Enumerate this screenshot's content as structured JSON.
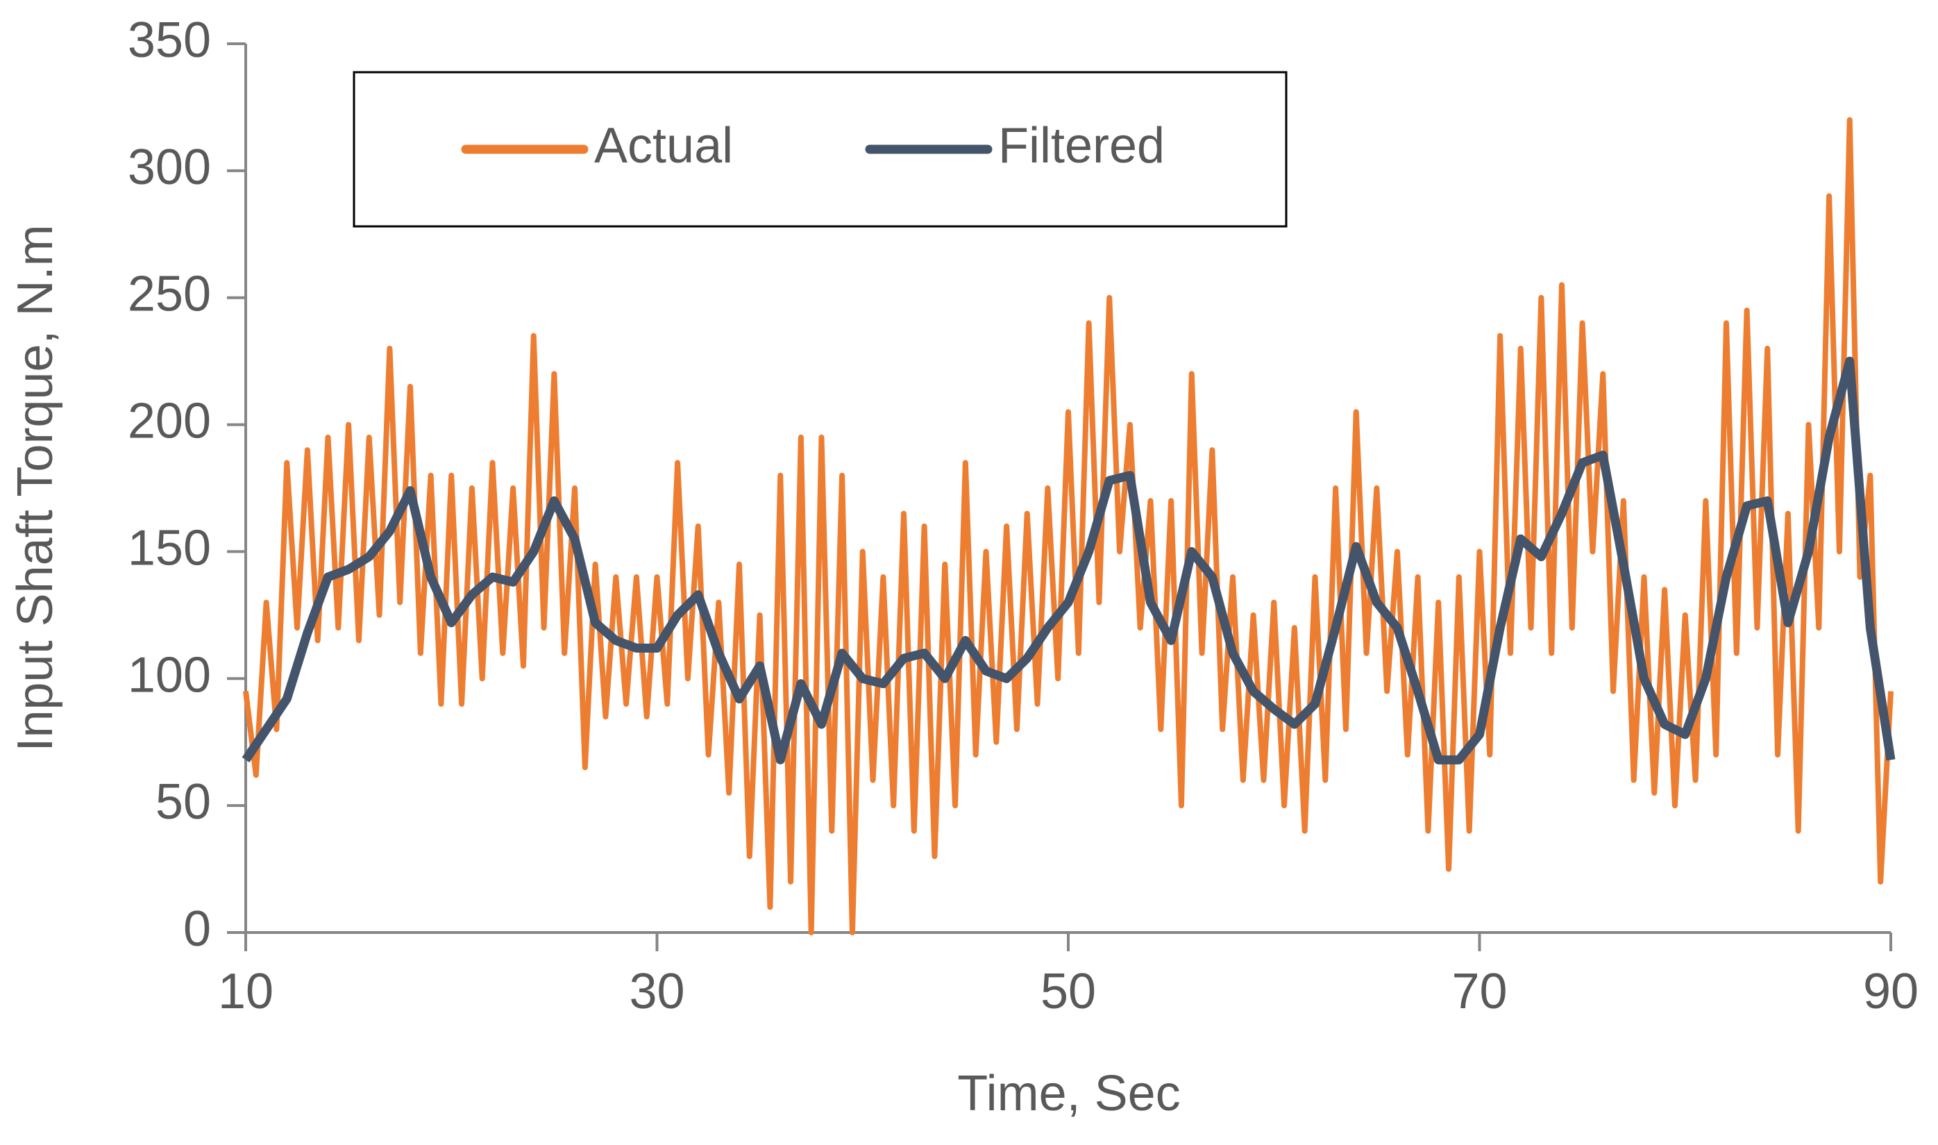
{
  "chart_data": {
    "type": "line",
    "x_label": "Time, Sec",
    "y_label": "Input Shaft Torque, N.m",
    "xlim": [
      10,
      90
    ],
    "xticks": [
      10,
      30,
      50,
      70,
      90
    ],
    "ylim": [
      0,
      350
    ],
    "yticks": [
      0,
      50,
      100,
      150,
      200,
      250,
      300,
      350
    ],
    "legend": "top-left",
    "series": [
      {
        "name": "Actual",
        "color": "#ED7D31",
        "x": [
          10,
          10.5,
          11,
          11.5,
          12,
          12.5,
          13,
          13.5,
          14,
          14.5,
          15,
          15.5,
          16,
          16.5,
          17,
          17.5,
          18,
          18.5,
          19,
          19.5,
          20,
          20.5,
          21,
          21.5,
          22,
          22.5,
          23,
          23.5,
          24,
          24.5,
          25,
          25.5,
          26,
          26.5,
          27,
          27.5,
          28,
          28.5,
          29,
          29.5,
          30,
          30.5,
          31,
          31.5,
          32,
          32.5,
          33,
          33.5,
          34,
          34.5,
          35,
          35.5,
          36,
          36.5,
          37,
          37.5,
          38,
          38.5,
          39,
          39.5,
          40,
          40.5,
          41,
          41.5,
          42,
          42.5,
          43,
          43.5,
          44,
          44.5,
          45,
          45.5,
          46,
          46.5,
          47,
          47.5,
          48,
          48.5,
          49,
          49.5,
          50,
          50.5,
          51,
          51.5,
          52,
          52.5,
          53,
          53.5,
          54,
          54.5,
          55,
          55.5,
          56,
          56.5,
          57,
          57.5,
          58,
          58.5,
          59,
          59.5,
          60,
          60.5,
          61,
          61.5,
          62,
          62.5,
          63,
          63.5,
          64,
          64.5,
          65,
          65.5,
          66,
          66.5,
          67,
          67.5,
          68,
          68.5,
          69,
          69.5,
          70,
          70.5,
          71,
          71.5,
          72,
          72.5,
          73,
          73.5,
          74,
          74.5,
          75,
          75.5,
          76,
          76.5,
          77,
          77.5,
          78,
          78.5,
          79,
          79.5,
          80,
          80.5,
          81,
          81.5,
          82,
          82.5,
          83,
          83.5,
          84,
          84.5,
          85,
          85.5,
          86,
          86.5,
          87,
          87.5,
          88,
          88.5,
          89,
          89.5,
          90
        ],
        "values": [
          95,
          62,
          130,
          80,
          185,
          120,
          190,
          115,
          195,
          120,
          200,
          115,
          195,
          125,
          230,
          130,
          215,
          110,
          180,
          90,
          180,
          90,
          175,
          100,
          185,
          110,
          175,
          105,
          235,
          120,
          220,
          110,
          175,
          65,
          145,
          85,
          140,
          90,
          140,
          85,
          140,
          90,
          185,
          100,
          160,
          70,
          130,
          55,
          145,
          30,
          125,
          10,
          180,
          20,
          195,
          0,
          195,
          40,
          180,
          0,
          150,
          60,
          140,
          50,
          165,
          40,
          160,
          30,
          145,
          50,
          185,
          70,
          150,
          75,
          160,
          80,
          165,
          90,
          175,
          100,
          205,
          110,
          240,
          130,
          250,
          150,
          200,
          120,
          170,
          80,
          170,
          50,
          220,
          110,
          190,
          80,
          140,
          60,
          125,
          60,
          130,
          50,
          120,
          40,
          140,
          60,
          175,
          80,
          205,
          110,
          175,
          95,
          150,
          70,
          140,
          40,
          130,
          25,
          140,
          40,
          150,
          70,
          235,
          110,
          230,
          120,
          250,
          110,
          255,
          120,
          240,
          150,
          220,
          95,
          170,
          60,
          140,
          55,
          135,
          50,
          125,
          60,
          170,
          70,
          240,
          110,
          245,
          120,
          230,
          70,
          165,
          40,
          200,
          120,
          290,
          150,
          320,
          140,
          180,
          20,
          95
        ]
      },
      {
        "name": "Filtered",
        "color": "#44546A",
        "x": [
          10,
          11,
          12,
          13,
          14,
          15,
          16,
          17,
          18,
          19,
          20,
          21,
          22,
          23,
          24,
          25,
          26,
          27,
          28,
          29,
          30,
          31,
          32,
          33,
          34,
          35,
          36,
          37,
          38,
          39,
          40,
          41,
          42,
          43,
          44,
          45,
          46,
          47,
          48,
          49,
          50,
          51,
          52,
          53,
          54,
          55,
          56,
          57,
          58,
          59,
          60,
          61,
          62,
          63,
          64,
          65,
          66,
          67,
          68,
          69,
          70,
          71,
          72,
          73,
          74,
          75,
          76,
          77,
          78,
          79,
          80,
          81,
          82,
          83,
          84,
          85,
          86,
          87,
          88,
          89,
          90
        ],
        "values": [
          68,
          80,
          92,
          118,
          140,
          143,
          148,
          158,
          174,
          140,
          122,
          133,
          140,
          138,
          150,
          170,
          155,
          122,
          115,
          112,
          112,
          125,
          133,
          110,
          92,
          105,
          68,
          98,
          82,
          110,
          100,
          98,
          108,
          110,
          100,
          115,
          103,
          100,
          108,
          120,
          130,
          150,
          178,
          180,
          130,
          115,
          150,
          140,
          110,
          95,
          88,
          82,
          90,
          120,
          152,
          130,
          120,
          95,
          68,
          68,
          78,
          120,
          155,
          148,
          165,
          185,
          188,
          145,
          100,
          82,
          78,
          100,
          140,
          168,
          170,
          122,
          150,
          195,
          225,
          120,
          68
        ]
      }
    ]
  }
}
